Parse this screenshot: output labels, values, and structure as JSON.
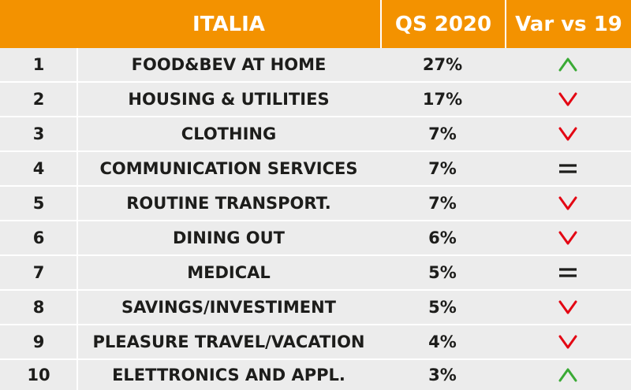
{
  "chart_data": {
    "type": "table",
    "columns": [
      "",
      "ITALIA",
      "QS 2020",
      "Var vs 19"
    ],
    "rows": [
      {
        "rank": "1",
        "category": "FOOD&BEV AT HOME",
        "share": "27%",
        "trend": "up"
      },
      {
        "rank": "2",
        "category": "HOUSING & UTILITIES",
        "share": "17%",
        "trend": "down"
      },
      {
        "rank": "3",
        "category": "CLOTHING",
        "share": "7%",
        "trend": "down"
      },
      {
        "rank": "4",
        "category": "COMMUNICATION SERVICES",
        "share": "7%",
        "trend": "equal"
      },
      {
        "rank": "5",
        "category": "ROUTINE TRANSPORT.",
        "share": "7%",
        "trend": "down"
      },
      {
        "rank": "6",
        "category": "DINING OUT",
        "share": "6%",
        "trend": "down"
      },
      {
        "rank": "7",
        "category": "MEDICAL",
        "share": "5%",
        "trend": "equal"
      },
      {
        "rank": "8",
        "category": "SAVINGS/INVESTIMENT",
        "share": "5%",
        "trend": "down"
      },
      {
        "rank": "9",
        "category": "PLEASURE TRAVEL/VACATION",
        "share": "4%",
        "trend": "down"
      },
      {
        "rank": "10",
        "category": "ELETTRONICS AND APPL.",
        "share": "3%",
        "trend": "up"
      }
    ]
  },
  "colors": {
    "header_bg": "#f39200",
    "header_text": "#ffffff",
    "row_bg": "#ececec",
    "text": "#1d1d1b",
    "up": "#3aaa35",
    "down": "#e30613",
    "equal": "#1d1d1b"
  },
  "icons": {
    "up": "chevron-up-icon",
    "down": "chevron-down-icon",
    "equal": "equals-icon"
  }
}
